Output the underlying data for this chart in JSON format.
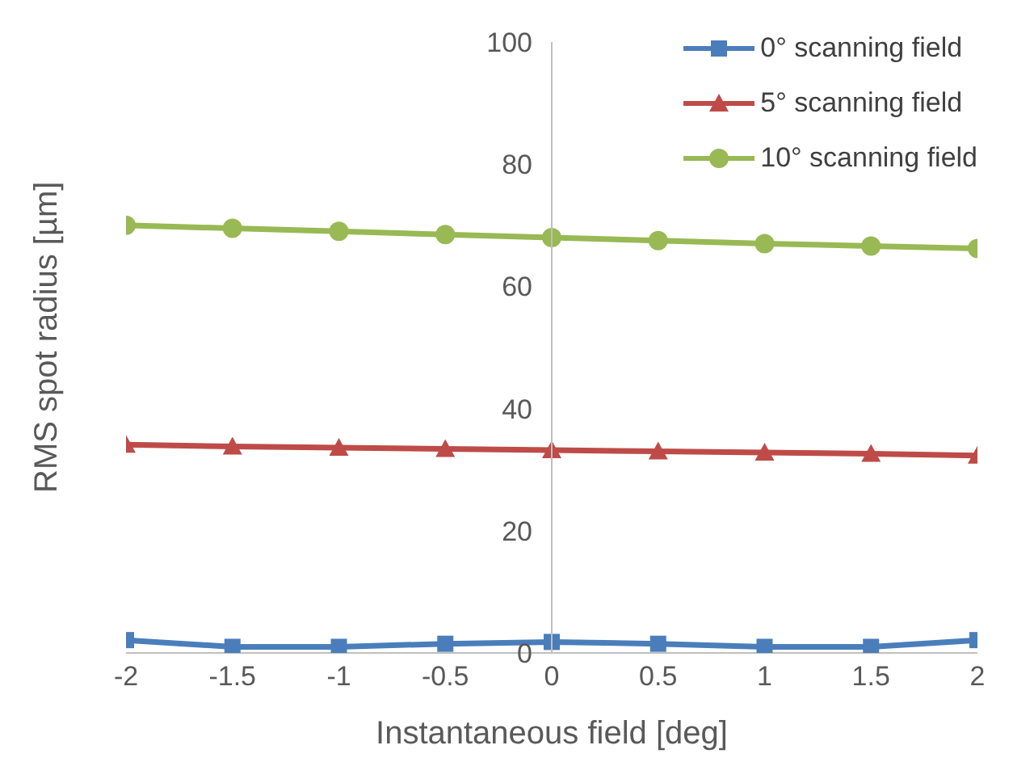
{
  "chart_data": {
    "type": "line",
    "xlabel": "Instantaneous field [deg]",
    "ylabel": "RMS spot radius [µm]",
    "x": [
      -2,
      -1.5,
      -1,
      -0.5,
      0,
      0.5,
      1,
      1.5,
      2
    ],
    "series": [
      {
        "name": "0° scanning field",
        "color": "#4a7ebb",
        "marker": "square",
        "values": [
          2.1,
          1.0,
          1.0,
          1.5,
          1.8,
          1.5,
          1.0,
          1.0,
          2.1
        ]
      },
      {
        "name": "5° scanning field",
        "color": "#be4b48",
        "marker": "triangle",
        "values": [
          34.1,
          33.8,
          33.6,
          33.4,
          33.2,
          33.0,
          32.8,
          32.6,
          32.3
        ]
      },
      {
        "name": "10° scanning field",
        "color": "#98b954",
        "marker": "circle",
        "values": [
          70.0,
          69.5,
          69.0,
          68.5,
          68.0,
          67.5,
          67.0,
          66.6,
          66.2
        ]
      }
    ],
    "xlim": [
      -2,
      2
    ],
    "xticks": [
      -2,
      -1.5,
      -1,
      -0.5,
      0,
      0.5,
      1,
      1.5,
      2
    ],
    "ylim": [
      0,
      100
    ],
    "yticks": [
      0,
      20,
      40,
      60,
      80,
      100
    ],
    "grid": false,
    "legend": "top right"
  }
}
